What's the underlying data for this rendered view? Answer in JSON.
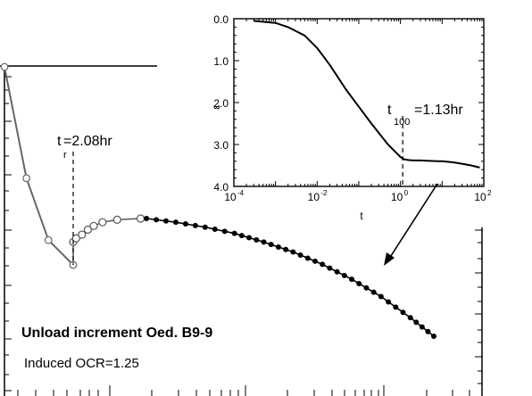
{
  "chart_data": [
    {
      "type": "scatter",
      "title": "",
      "xlabel": "",
      "ylabel": "",
      "annotations": {
        "tr_label": {
          "main": "t",
          "sub": "r",
          "value": "=2.08hr"
        },
        "title_line": "Unload increment  Oed. B9-9",
        "ocr_line": "Induced OCR=1.25"
      },
      "loading_series": {
        "name": "",
        "marker": "open-circle",
        "points": [
          [
            0.0,
            0.1
          ],
          [
            0.08,
            0.19
          ],
          [
            0.16,
            0.24
          ],
          [
            0.25,
            0.26
          ]
        ]
      },
      "unload_rebound_series": {
        "name": "",
        "marker": "open-circle",
        "points": [
          [
            0.25,
            0.19
          ],
          [
            0.26,
            0.16
          ],
          [
            0.28,
            0.13
          ],
          [
            0.3,
            0.09
          ],
          [
            0.32,
            0.06
          ],
          [
            0.35,
            0.03
          ],
          [
            0.4,
            0.01
          ],
          [
            0.48,
            0.0
          ]
        ]
      },
      "secondary_series": {
        "name": "",
        "marker": "filled-circle",
        "points": [
          [
            0.5,
            0.0
          ],
          [
            0.6,
            0.03
          ],
          [
            0.7,
            0.07
          ],
          [
            0.8,
            0.12
          ],
          [
            0.9,
            0.19
          ],
          [
            1.0,
            0.27
          ],
          [
            1.1,
            0.37
          ],
          [
            1.2,
            0.49
          ],
          [
            1.3,
            0.63
          ],
          [
            1.4,
            0.8
          ],
          [
            1.48,
            0.95
          ]
        ]
      }
    },
    {
      "type": "line",
      "title": "",
      "xlabel": "t",
      "ylabel": "ε",
      "x_scale": "log",
      "xlim": [
        0.0001,
        100
      ],
      "ylim": [
        0.0,
        4.0
      ],
      "y_inverted": true,
      "x_tick_labels": [
        {
          "base": "10",
          "exp": "-4"
        },
        {
          "base": "10",
          "exp": "-2"
        },
        {
          "base": "10",
          "exp": "0"
        },
        {
          "base": "10",
          "exp": "2"
        }
      ],
      "y_tick_labels": [
        "0.0",
        "1.0",
        "2.0",
        "3.0",
        "4.0"
      ],
      "annotation": {
        "main": "t",
        "sub": "100",
        "value": "=1.13hr"
      },
      "t100": 1.13,
      "series": [
        {
          "name": "",
          "x": [
            0.0003,
            0.001,
            0.002,
            0.005,
            0.01,
            0.02,
            0.05,
            0.1,
            0.2,
            0.5,
            1.0,
            1.2,
            1.5,
            2,
            3,
            5,
            8,
            10,
            20,
            30,
            50,
            80
          ],
          "y": [
            0.05,
            0.1,
            0.2,
            0.4,
            0.7,
            1.1,
            1.7,
            2.1,
            2.5,
            3.0,
            3.3,
            3.35,
            3.37,
            3.38,
            3.38,
            3.39,
            3.4,
            3.4,
            3.43,
            3.46,
            3.5,
            3.55
          ]
        }
      ]
    }
  ]
}
